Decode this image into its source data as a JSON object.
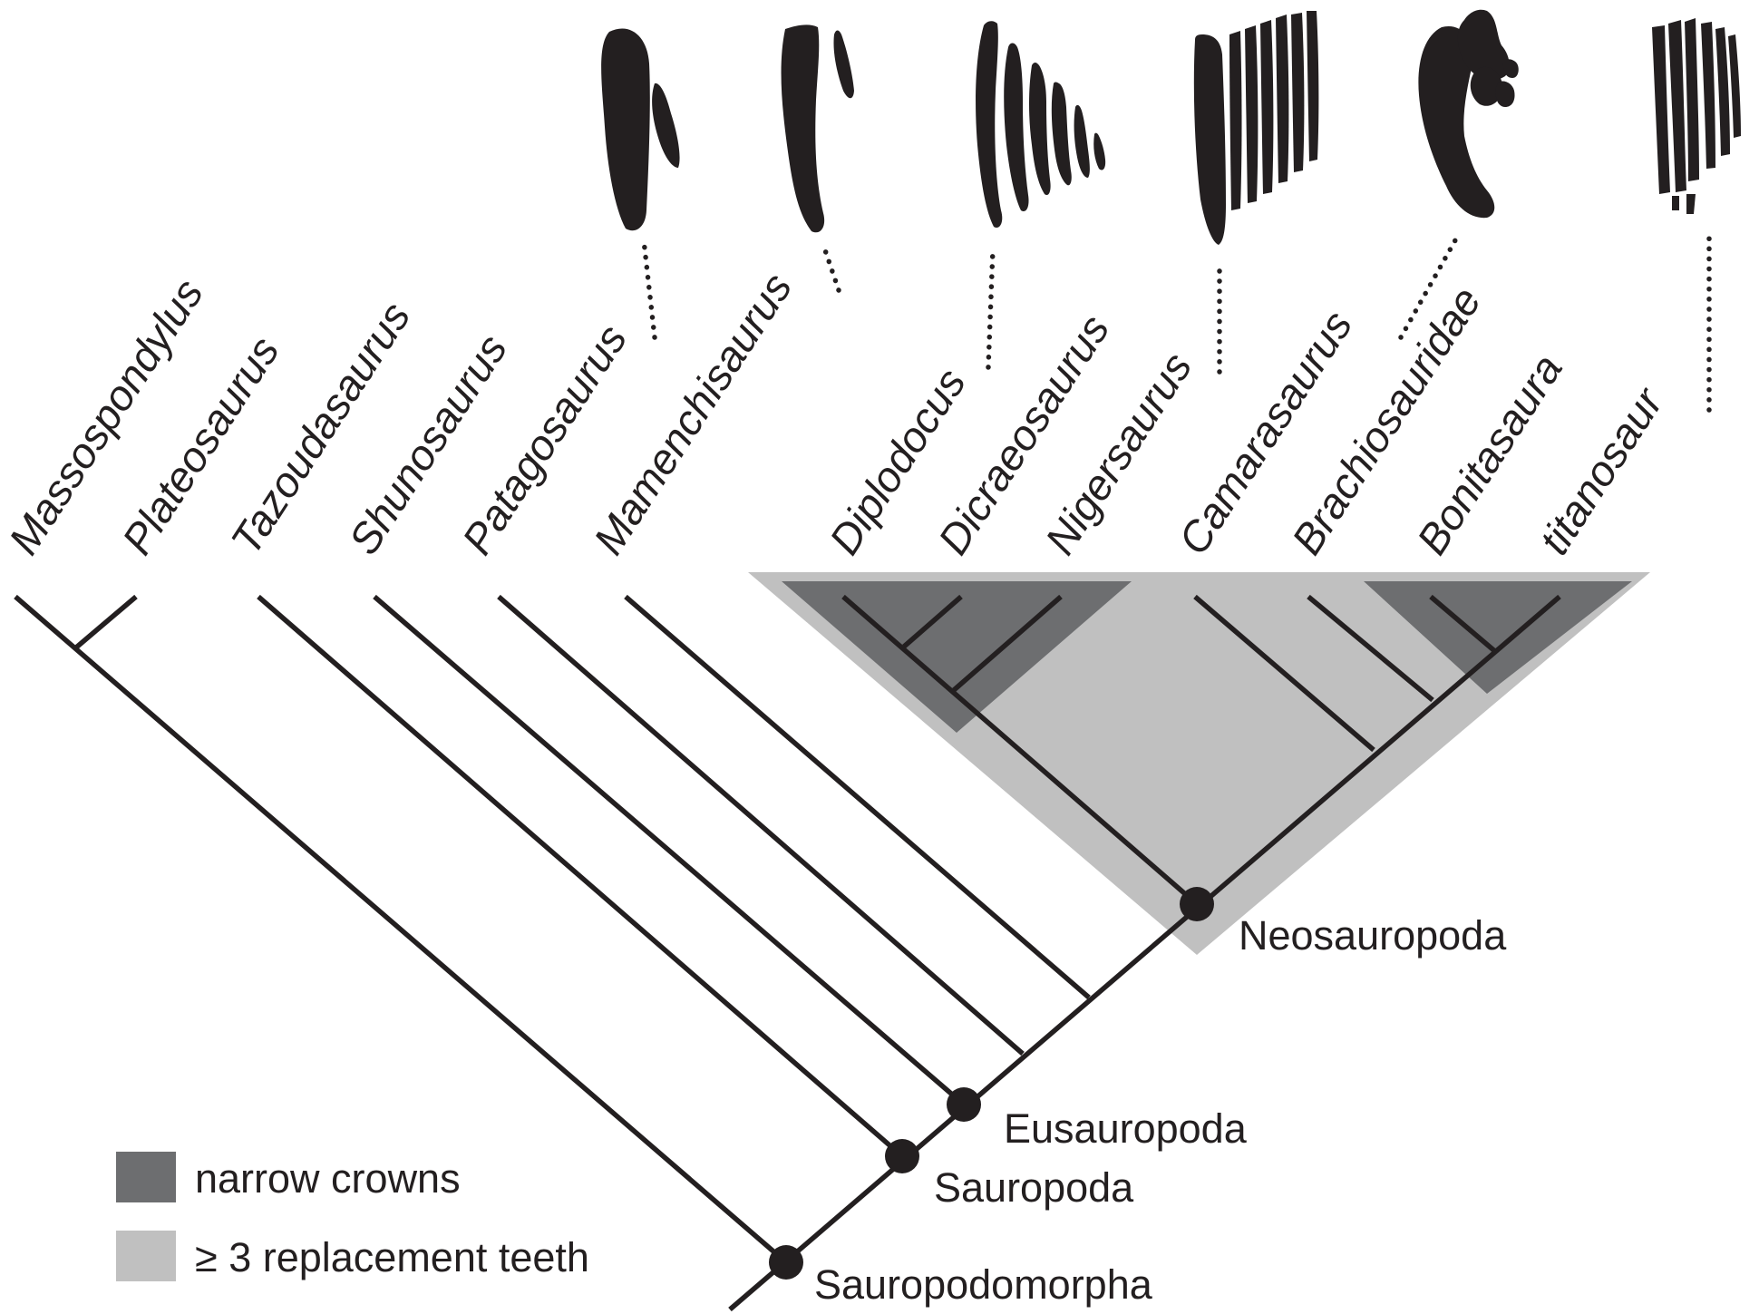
{
  "taxa": {
    "massospondylus": "Massospondylus",
    "plateosaurus": "Plateosaurus",
    "tazoudasaurus": "Tazoudasaurus",
    "shunosaurus": "Shunosaurus",
    "patagosaurus": "Patagosaurus",
    "mamenchisaurus": "Mamenchisaurus",
    "diplodocus": "Diplodocus",
    "dicraeosaurus": "Dicraeosaurus",
    "nigersaurus": "Nigersaurus",
    "camarasaurus": "Camarasaurus",
    "brachiosauridae": "Brachiosauridae",
    "bonitasaura": "Bonitasaura",
    "titanosaur": "titanosaur"
  },
  "clades": {
    "neosauropoda": "Neosauropoda",
    "eusauropoda": "Eusauropoda",
    "sauropoda": "Sauropoda",
    "sauropodomorpha": "Sauropodomorpha"
  },
  "legend": {
    "narrow_crowns": "narrow crowns",
    "replacement_teeth": "≥ 3 replacement teeth"
  },
  "colors": {
    "branch": "#231f20",
    "narrow_crowns": "#6d6e70",
    "replacement_teeth": "#c0c0c0"
  }
}
